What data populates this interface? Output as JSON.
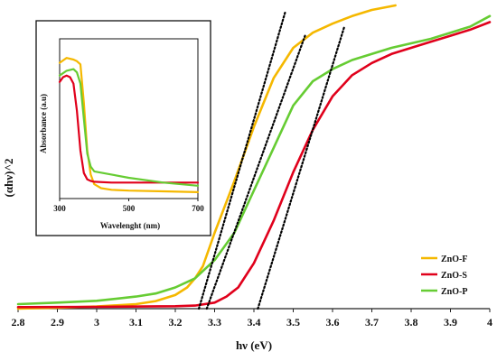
{
  "chart_data": [
    {
      "type": "line",
      "xlabel": "hν (eV)",
      "ylabel": "(αhν)^2",
      "xlim": [
        2.8,
        4.0
      ],
      "ylim": [
        0,
        1
      ],
      "x_ticks": [
        "2.8",
        "2.9",
        "3",
        "3.1",
        "3.2",
        "3.3",
        "3.4",
        "3.5",
        "3.6",
        "3.7",
        "3.8",
        "3.9",
        "4"
      ],
      "grid": false,
      "legend_position": "right",
      "series": [
        {
          "name": "ZnO-F",
          "color": "#f5b800",
          "x": [
            2.8,
            2.9,
            3.0,
            3.1,
            3.15,
            3.2,
            3.23,
            3.25,
            3.27,
            3.3,
            3.35,
            3.4,
            3.45,
            3.5,
            3.55,
            3.6,
            3.65,
            3.7,
            3.76
          ],
          "y": [
            0.0,
            0.003,
            0.007,
            0.015,
            0.025,
            0.045,
            0.07,
            0.1,
            0.14,
            0.25,
            0.42,
            0.6,
            0.76,
            0.86,
            0.91,
            0.94,
            0.965,
            0.985,
            1.0
          ]
        },
        {
          "name": "ZnO-S",
          "color": "#e0001b",
          "x": [
            2.8,
            3.0,
            3.2,
            3.25,
            3.3,
            3.33,
            3.36,
            3.4,
            3.45,
            3.5,
            3.55,
            3.6,
            3.65,
            3.7,
            3.75,
            3.8,
            3.85,
            3.9,
            3.95,
            4.0
          ],
          "y": [
            0.005,
            0.006,
            0.008,
            0.01,
            0.02,
            0.04,
            0.07,
            0.15,
            0.29,
            0.45,
            0.59,
            0.7,
            0.77,
            0.81,
            0.84,
            0.86,
            0.88,
            0.9,
            0.92,
            0.945
          ]
        },
        {
          "name": "ZnO-P",
          "color": "#66cc33",
          "x": [
            2.8,
            2.9,
            3.0,
            3.1,
            3.15,
            3.2,
            3.25,
            3.3,
            3.35,
            3.4,
            3.45,
            3.5,
            3.55,
            3.6,
            3.65,
            3.7,
            3.75,
            3.8,
            3.85,
            3.9,
            3.95,
            4.0
          ],
          "y": [
            0.015,
            0.02,
            0.026,
            0.04,
            0.05,
            0.07,
            0.1,
            0.16,
            0.25,
            0.39,
            0.53,
            0.67,
            0.75,
            0.79,
            0.82,
            0.84,
            0.86,
            0.875,
            0.89,
            0.91,
            0.93,
            0.965
          ]
        }
      ],
      "tangent_lines": [
        {
          "color": "#000000",
          "x": [
            3.26,
            3.48
          ],
          "y": [
            0.0,
            0.98
          ]
        },
        {
          "color": "#000000",
          "x": [
            3.28,
            3.53
          ],
          "y": [
            0.0,
            0.9
          ]
        },
        {
          "color": "#000000",
          "x": [
            3.41,
            3.63
          ],
          "y": [
            0.0,
            0.93
          ]
        }
      ]
    },
    {
      "type": "line",
      "xlabel": "Wavelenght (nm)",
      "ylabel": "Absorbance (a.u)",
      "xlim": [
        300,
        700
      ],
      "ylim": [
        0,
        1
      ],
      "x_ticks": [
        "300",
        "500",
        "700"
      ],
      "grid": false,
      "series": [
        {
          "color": "#f5b800",
          "x": [
            300,
            320,
            340,
            350,
            360,
            370,
            380,
            390,
            400,
            420,
            450,
            500,
            600,
            700
          ],
          "y": [
            0.85,
            0.88,
            0.87,
            0.86,
            0.84,
            0.6,
            0.3,
            0.15,
            0.09,
            0.065,
            0.055,
            0.05,
            0.045,
            0.04
          ]
        },
        {
          "color": "#e0001b",
          "x": [
            300,
            310,
            320,
            330,
            340,
            350,
            360,
            370,
            380,
            390,
            400,
            450,
            500,
            600,
            700
          ],
          "y": [
            0.73,
            0.76,
            0.77,
            0.76,
            0.72,
            0.55,
            0.3,
            0.16,
            0.12,
            0.11,
            0.105,
            0.1,
            0.1,
            0.1,
            0.1
          ]
        },
        {
          "color": "#66cc33",
          "x": [
            300,
            320,
            340,
            350,
            360,
            370,
            380,
            390,
            400,
            450,
            500,
            600,
            700
          ],
          "y": [
            0.77,
            0.8,
            0.81,
            0.79,
            0.72,
            0.5,
            0.28,
            0.2,
            0.17,
            0.15,
            0.13,
            0.1,
            0.08
          ]
        }
      ]
    }
  ]
}
